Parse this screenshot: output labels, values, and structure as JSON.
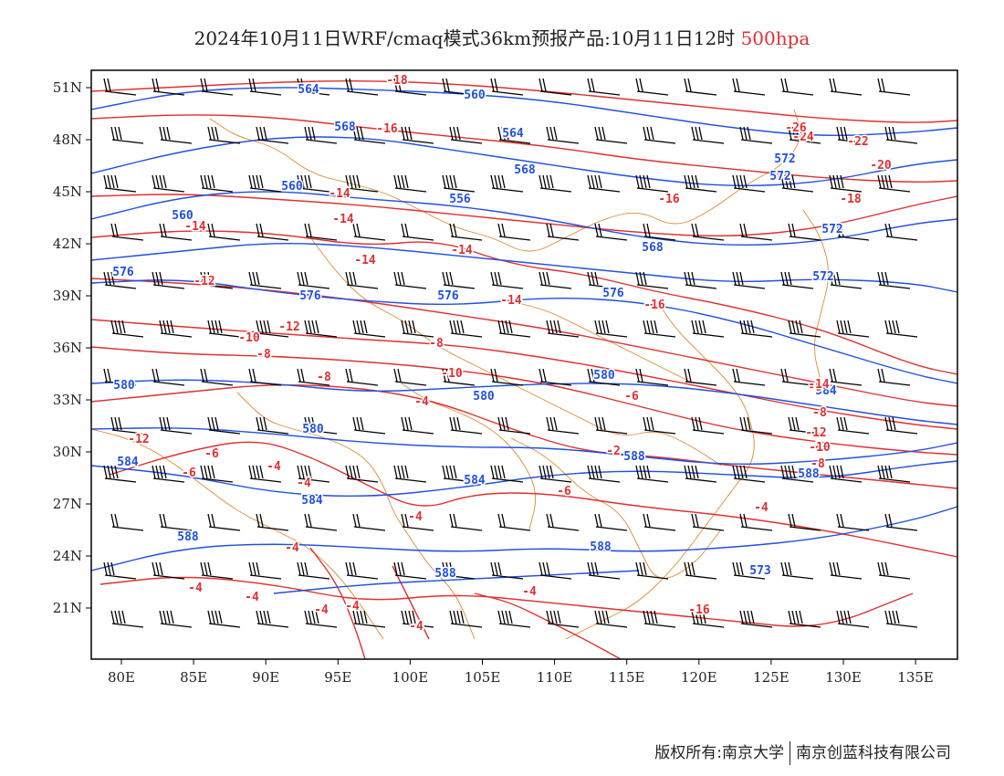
{
  "title": {
    "main": "2024年10月11日WRF/cmaq模式36km预报产品:10月11日12时",
    "level": "500hpa"
  },
  "colors": {
    "height": "#2050e0",
    "temperature": "#e03030",
    "border": "#e08a30",
    "barb": "#000000"
  },
  "axes": {
    "x_ticks": [
      "80E",
      "85E",
      "90E",
      "95E",
      "100E",
      "105E",
      "110E",
      "115E",
      "120E",
      "125E",
      "130E",
      "135E"
    ],
    "y_ticks": [
      "51N",
      "48N",
      "45N",
      "42N",
      "39N",
      "36N",
      "33N",
      "30N",
      "27N",
      "24N",
      "21N"
    ]
  },
  "height_labels": [
    "564",
    "560",
    "568",
    "564",
    "568",
    "572",
    "572",
    "572",
    "560",
    "556",
    "560",
    "576",
    "576",
    "576",
    "576",
    "568",
    "572",
    "580",
    "580",
    "580",
    "580",
    "584",
    "584",
    "584",
    "584",
    "588",
    "588",
    "588",
    "588",
    "588",
    "573"
  ],
  "temp_labels": [
    "-18",
    "-16",
    "-14",
    "-14",
    "-14",
    "-14",
    "-14",
    "-12",
    "-12",
    "-14",
    "-16",
    "-10",
    "-8",
    "-8",
    "-10",
    "-8",
    "-4",
    "-6",
    "-8",
    "-12",
    "-6",
    "-4",
    "-2",
    "-4",
    "-6",
    "-8",
    "-8",
    "-6",
    "-4",
    "-4",
    "-4",
    "-4",
    "-4",
    "-4",
    "-4",
    "-4",
    "-4",
    "-16",
    "-14",
    "-12",
    "-10",
    "-8",
    "-16",
    "-18",
    "-20",
    "-22",
    "-24",
    "-26"
  ],
  "footer": {
    "left": "版权所有:南京大学",
    "right": "南京创蓝科技有限公司"
  }
}
